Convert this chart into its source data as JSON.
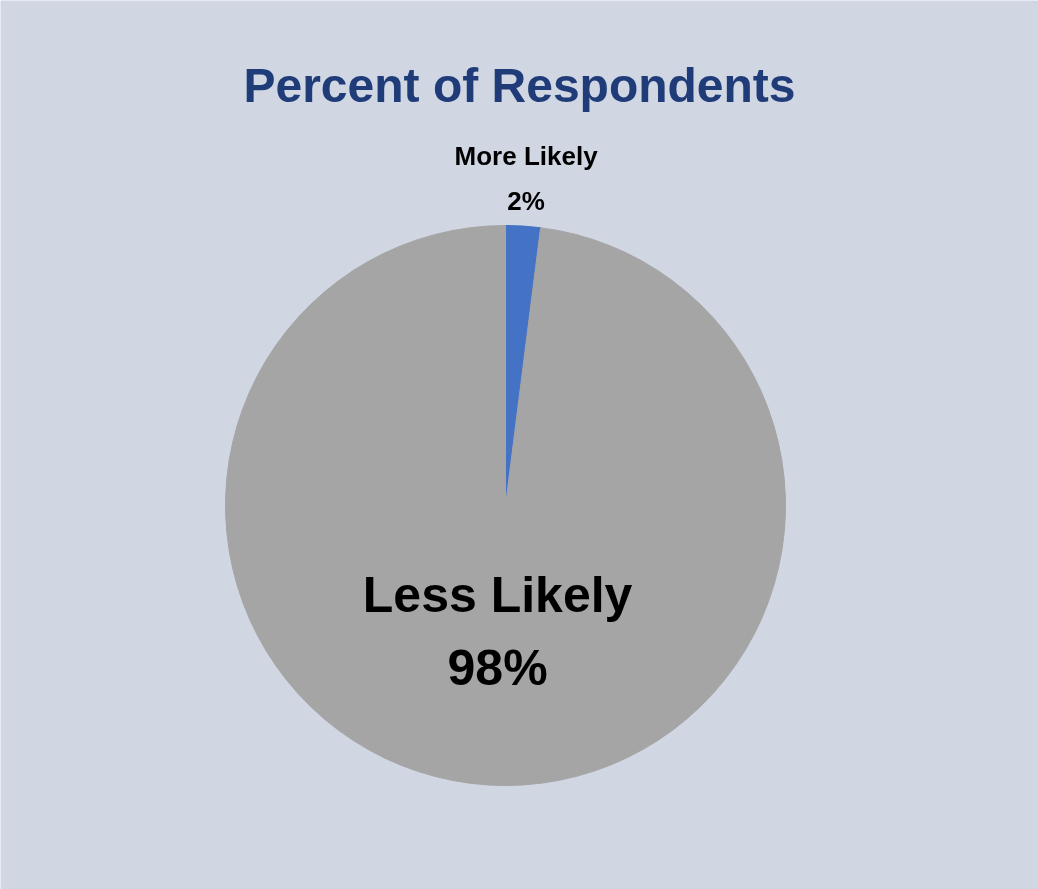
{
  "chart_data": {
    "type": "pie",
    "title": "Percent of Respondents",
    "categories": [
      "More Likely",
      "Less Likely"
    ],
    "values": [
      2,
      98
    ],
    "colors": [
      "#4472c4",
      "#a5a5a5"
    ],
    "value_labels": [
      "2%",
      "98%"
    ]
  }
}
